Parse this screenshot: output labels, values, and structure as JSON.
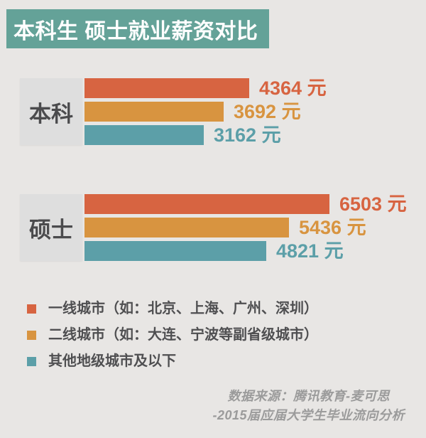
{
  "header": {
    "title": "本科生 硕士就业薪资对比",
    "bg_color": "#64a298",
    "text_color": "#ffffff"
  },
  "chart_data": {
    "type": "bar",
    "orientation": "horizontal",
    "title": "本科生 硕士就业薪资对比",
    "unit": "元",
    "categories": [
      "本科",
      "硕士"
    ],
    "series": [
      {
        "name": "一线城市（如：北京、上海、广州、深圳）",
        "color": "#d76441",
        "values": [
          4364,
          6503
        ]
      },
      {
        "name": "二线城市（如：大连、宁波等副省级城市）",
        "color": "#d89440",
        "values": [
          3692,
          5436
        ]
      },
      {
        "name": "其他地级城市及以下",
        "color": "#5c9fa8",
        "values": [
          3162,
          4821
        ]
      }
    ],
    "max_value": 6503,
    "value_label_format": "{value} {unit}",
    "legend_position": "bottom-left",
    "axes_shown": false,
    "grid": false
  },
  "footer": {
    "line1": "数据来源：腾讯教育-麦可思",
    "line2": "-2015届应届大学生毕业流向分析"
  },
  "colors": {
    "page_bg": "#e8e6e4",
    "category_box_bg": "#dedede",
    "category_text": "#4b4b4d",
    "legend_text": "#4f4f51",
    "footer_text": "#9b9b9b"
  }
}
